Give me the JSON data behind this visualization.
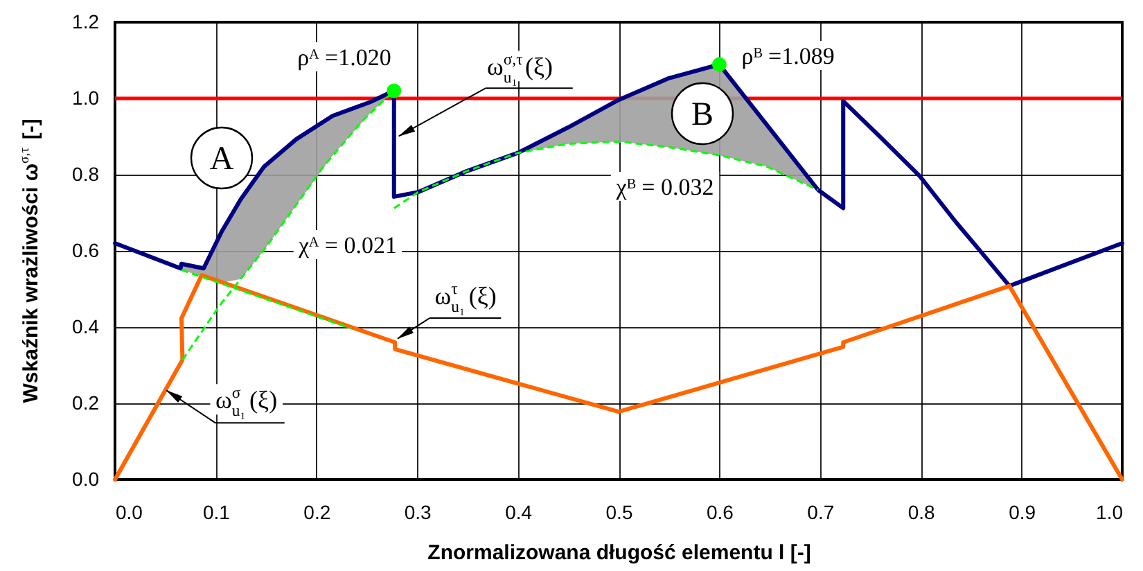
{
  "chart_data": {
    "type": "line",
    "xlabel": "Znormalizowana długość elementu l [-]",
    "ylabel": "Wskaźnik wrażliwości ω$^{σ,τ}$ [-]",
    "xlim": [
      0.0,
      1.0
    ],
    "ylim": [
      0.0,
      1.2
    ],
    "xticks": [
      {
        "value": 0,
        "label": "0.0"
      },
      0.1,
      0.2,
      0.3,
      0.4,
      0.5,
      0.6,
      0.7,
      0.8,
      0.9,
      {
        "value": 1,
        "label": "1.0"
      }
    ],
    "yticks": [
      {
        "value": 0,
        "label": "0.0"
      },
      0.2,
      0.4,
      0.6,
      0.8,
      {
        "value": 1,
        "label": "1.0"
      },
      1.2
    ],
    "grid": true,
    "ref_lines": [
      {
        "axis": "y",
        "value": 1.0,
        "color": "#ff0000"
      }
    ],
    "series": [
      {
        "color": "#000080",
        "line_style": "solid",
        "x": [
          0,
          0.065,
          0.066,
          0.088,
          0.106,
          0.125,
          0.148,
          0.18,
          0.216,
          0.253,
          0.277,
          0.277,
          0.301,
          0.349,
          0.4,
          0.45,
          0.5,
          0.55,
          0.6,
          0.647,
          0.698,
          0.723,
          0.723,
          0.762,
          0.799,
          0.835,
          0.858,
          0.888,
          1.0
        ],
        "values": [
          0.62,
          0.554,
          0.566,
          0.554,
          0.651,
          0.736,
          0.821,
          0.893,
          0.954,
          0.99,
          1.02,
          0.742,
          0.754,
          0.809,
          0.857,
          0.924,
          0.996,
          1.053,
          1.089,
          0.931,
          0.76,
          0.712,
          0.993,
          0.893,
          0.796,
          0.675,
          0.603,
          0.508,
          0.62
        ],
        "lower": [
          null,
          null,
          0.55,
          0.532,
          0.517,
          0.526,
          0.602,
          0.72,
          0.85,
          0.96,
          1.02,
          null,
          null,
          null,
          0.857,
          0.881,
          0.887,
          0.872,
          0.851,
          0.821,
          0.76,
          null,
          null,
          null,
          null,
          null,
          null,
          null,
          null
        ],
        "upper": [
          null,
          null,
          0.566,
          0.554,
          0.651,
          0.736,
          0.821,
          0.893,
          0.954,
          0.99,
          1.02,
          null,
          null,
          null,
          0.857,
          0.924,
          0.996,
          1.053,
          1.089,
          0.931,
          0.76,
          null,
          null,
          null,
          null,
          null,
          null,
          null,
          null
        ]
      },
      {
        "color": "#ff6600",
        "line_style": "solid",
        "x": [
          0,
          0.067,
          0.066,
          0.086,
          0.278,
          0.278,
          0.5,
          0.723,
          0.723,
          0.888,
          1.0
        ],
        "values": [
          0,
          0.314,
          0.423,
          0.536,
          0.36,
          0.342,
          0.178,
          0.348,
          0.36,
          0.508,
          0
        ]
      },
      {
        "color": "#00ff00",
        "line_style": "dashed",
        "x": [
          0.067,
          0.104,
          0.15,
          0.207,
          0.246,
          0.277
        ],
        "values": [
          0.314,
          0.457,
          0.61,
          0.821,
          0.942,
          1.02
        ]
      },
      {
        "color": "#00ff00",
        "line_style": "dashed",
        "x": [
          0.066,
          0.235
        ],
        "values": [
          0.55,
          0.396
        ]
      },
      {
        "color": "#00ff00",
        "line_style": "dashed",
        "x": [
          0.277,
          0.301,
          0.349,
          0.4,
          0.45,
          0.5,
          0.55,
          0.6,
          0.647,
          0.698
        ],
        "values": [
          0.712,
          0.754,
          0.809,
          0.857,
          0.881,
          0.887,
          0.872,
          0.851,
          0.821,
          0.76
        ]
      },
      {
        "type": "scatter",
        "color": "#00ff00",
        "marker": "circle",
        "x": [
          0.277,
          0.6
        ],
        "values": [
          1.02,
          1.089
        ]
      }
    ],
    "annotations": [
      {
        "text": "ρᴬ =1.020",
        "x": 0.277,
        "y": 1.02
      },
      {
        "text": "ρᴮ =1.089",
        "x": 0.6,
        "y": 1.089
      },
      "χᴬ = 0.021",
      "χᴮ = 0.032",
      "A",
      "B",
      {
        "text": "ω$^{σ,τ}$$_{u₁}$(ξ)",
        "x": 0.277,
        "y": 0.894
      },
      {
        "text": "ω$^{τ}$$_{u₁}$(ξ)",
        "x": 0.276,
        "y": 0.362
      },
      {
        "text": "ω$^{σ}$$_{u₁}$(ξ)",
        "x": 0.05,
        "y": 0.236
      }
    ]
  }
}
